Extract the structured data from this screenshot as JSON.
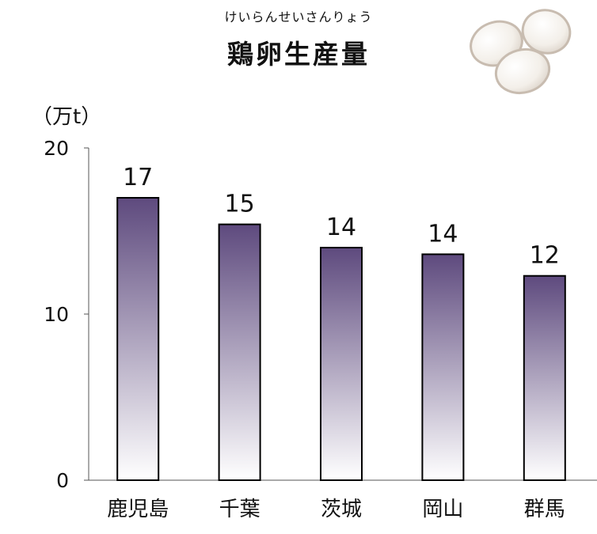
{
  "chart_data": {
    "type": "bar",
    "title_ruby": "けいらんせいさんりょう",
    "title": "鶏卵生産量",
    "unit_label": "（万t）",
    "categories": [
      "鹿児島",
      "千葉",
      "茨城",
      "岡山",
      "群馬"
    ],
    "values": [
      17,
      15.4,
      14,
      13.6,
      12.3
    ],
    "value_labels": [
      "17",
      "15",
      "14",
      "14",
      "12"
    ],
    "ylim": [
      0,
      20
    ],
    "yticks": [
      "0",
      "10",
      "20"
    ],
    "grid": false,
    "bar_color_top": "#5e4a7e",
    "bar_color_bottom": "#ffffff"
  },
  "decoration": {
    "icon": "eggs-icon"
  }
}
